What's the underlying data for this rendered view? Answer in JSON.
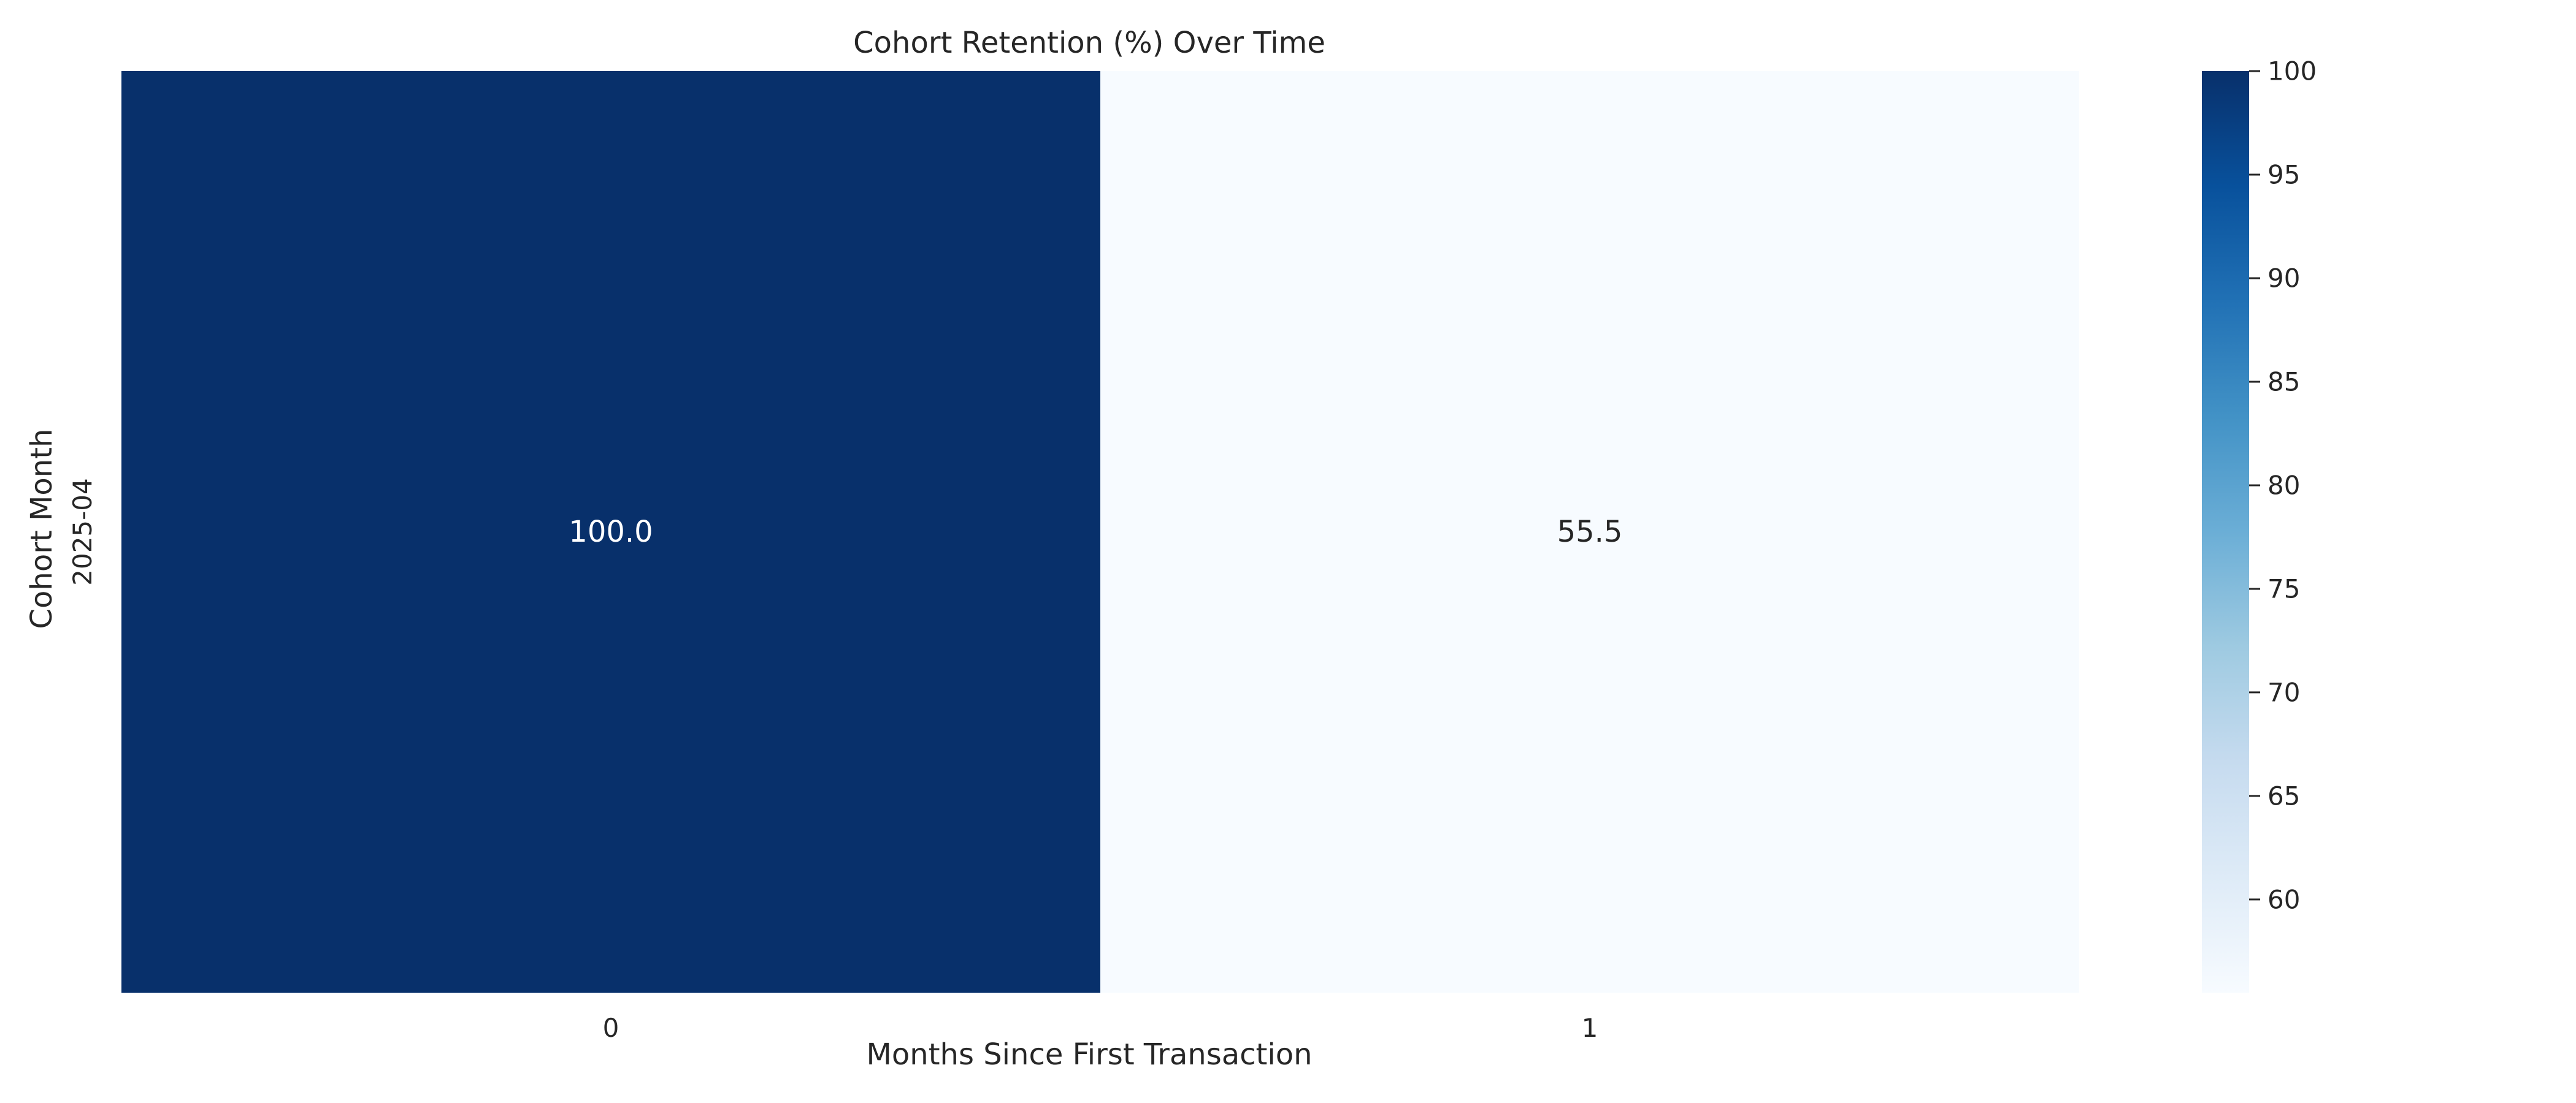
{
  "chart_data": {
    "type": "heatmap",
    "title": "Cohort Retention (%) Over Time",
    "xlabel": "Months Since First Transaction",
    "ylabel": "Cohort Month",
    "x_categories": [
      "0",
      "1"
    ],
    "y_categories": [
      "2025-04"
    ],
    "values": [
      [
        100.0,
        55.5
      ]
    ],
    "cell_labels": [
      [
        "100.0",
        "55.5"
      ]
    ],
    "colormap": "Blues",
    "color_range": [
      55.5,
      100.0
    ],
    "colorbar": {
      "ticks": [
        60,
        65,
        70,
        75,
        80,
        85,
        90,
        95,
        100
      ],
      "tick_labels": [
        "60",
        "65",
        "70",
        "75",
        "80",
        "85",
        "90",
        "95",
        "100"
      ],
      "placement": "right"
    },
    "grid": false,
    "colors": {
      "max_color": "#08306b",
      "min_color": "#f7fbff",
      "text_dark": "#262626",
      "text_light": "#ffffff"
    }
  }
}
